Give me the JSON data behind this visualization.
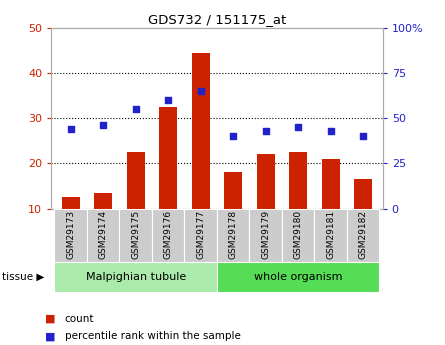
{
  "title": "GDS732 / 151175_at",
  "samples": [
    "GSM29173",
    "GSM29174",
    "GSM29175",
    "GSM29176",
    "GSM29177",
    "GSM29178",
    "GSM29179",
    "GSM29180",
    "GSM29181",
    "GSM29182"
  ],
  "counts": [
    12.5,
    13.5,
    22.5,
    32.5,
    44.5,
    18.0,
    22.0,
    22.5,
    21.0,
    16.5
  ],
  "percentiles": [
    44,
    46,
    55,
    60,
    65,
    40,
    43,
    45,
    43,
    40
  ],
  "ylim_left": [
    10,
    50
  ],
  "ylim_right": [
    0,
    100
  ],
  "yticks_left": [
    10,
    20,
    30,
    40,
    50
  ],
  "yticks_right": [
    0,
    25,
    50,
    75,
    100
  ],
  "yticklabels_right": [
    "0",
    "25",
    "50",
    "75",
    "100%"
  ],
  "bar_color": "#cc2200",
  "dot_color": "#2222cc",
  "bar_width": 0.55,
  "tissue_groups": [
    {
      "label": "Malpighian tubule",
      "n": 5,
      "color": "#aaeaaa"
    },
    {
      "label": "whole organism",
      "n": 5,
      "color": "#55dd55"
    }
  ],
  "legend_count_label": "count",
  "legend_pct_label": "percentile rank within the sample",
  "tissue_arrow": "tissue ▶"
}
